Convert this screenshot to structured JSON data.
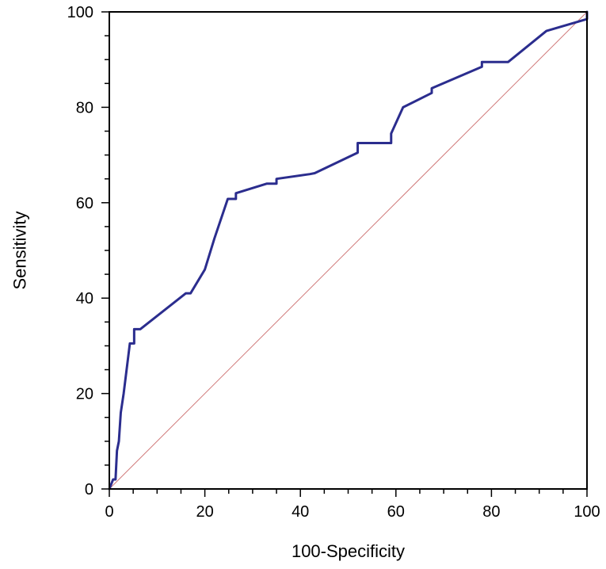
{
  "chart_data": {
    "type": "line",
    "title": "",
    "xlabel": "100-Specificity",
    "ylabel": "Sensitivity",
    "xlim": [
      0,
      100
    ],
    "ylim": [
      0,
      100
    ],
    "x_ticks": [
      0,
      20,
      40,
      60,
      80,
      100
    ],
    "y_ticks": [
      0,
      20,
      40,
      60,
      80,
      100
    ],
    "x_minor_step": 5,
    "y_minor_step": 5,
    "grid": false,
    "legend": "none",
    "series": [
      {
        "role": "roc-curve",
        "color": "#2b2d8e",
        "x": [
          0,
          0.8,
          1.3,
          1.6,
          2.0,
          2.3,
          2.4,
          3.0,
          4.3,
          5.2,
          5.2,
          5.6,
          6.5,
          16.0,
          17.0,
          20.0,
          22.0,
          24.8,
          24.8,
          26.5,
          26.5,
          33.0,
          35.0,
          35.0,
          42.0,
          43.0,
          52.0,
          52.0,
          59.0,
          59.0,
          61.5,
          67.5,
          67.5,
          78.0,
          78.0,
          83.5,
          91.5,
          100.0,
          100.0
        ],
        "y": [
          0,
          2.0,
          2.0,
          8.0,
          10.0,
          14.5,
          16.0,
          20.0,
          30.5,
          30.5,
          33.5,
          33.5,
          33.5,
          41.0,
          41.0,
          46.0,
          52.5,
          60.8,
          60.8,
          60.8,
          62.0,
          64.0,
          64.0,
          65.0,
          66.0,
          66.2,
          70.5,
          72.5,
          72.5,
          74.5,
          80.0,
          83.0,
          84.0,
          88.5,
          89.5,
          89.5,
          96.0,
          98.5,
          100.0
        ]
      },
      {
        "role": "reference-diagonal",
        "color": "#d07a7a",
        "x": [
          0,
          100
        ],
        "y": [
          0,
          100
        ]
      }
    ]
  }
}
